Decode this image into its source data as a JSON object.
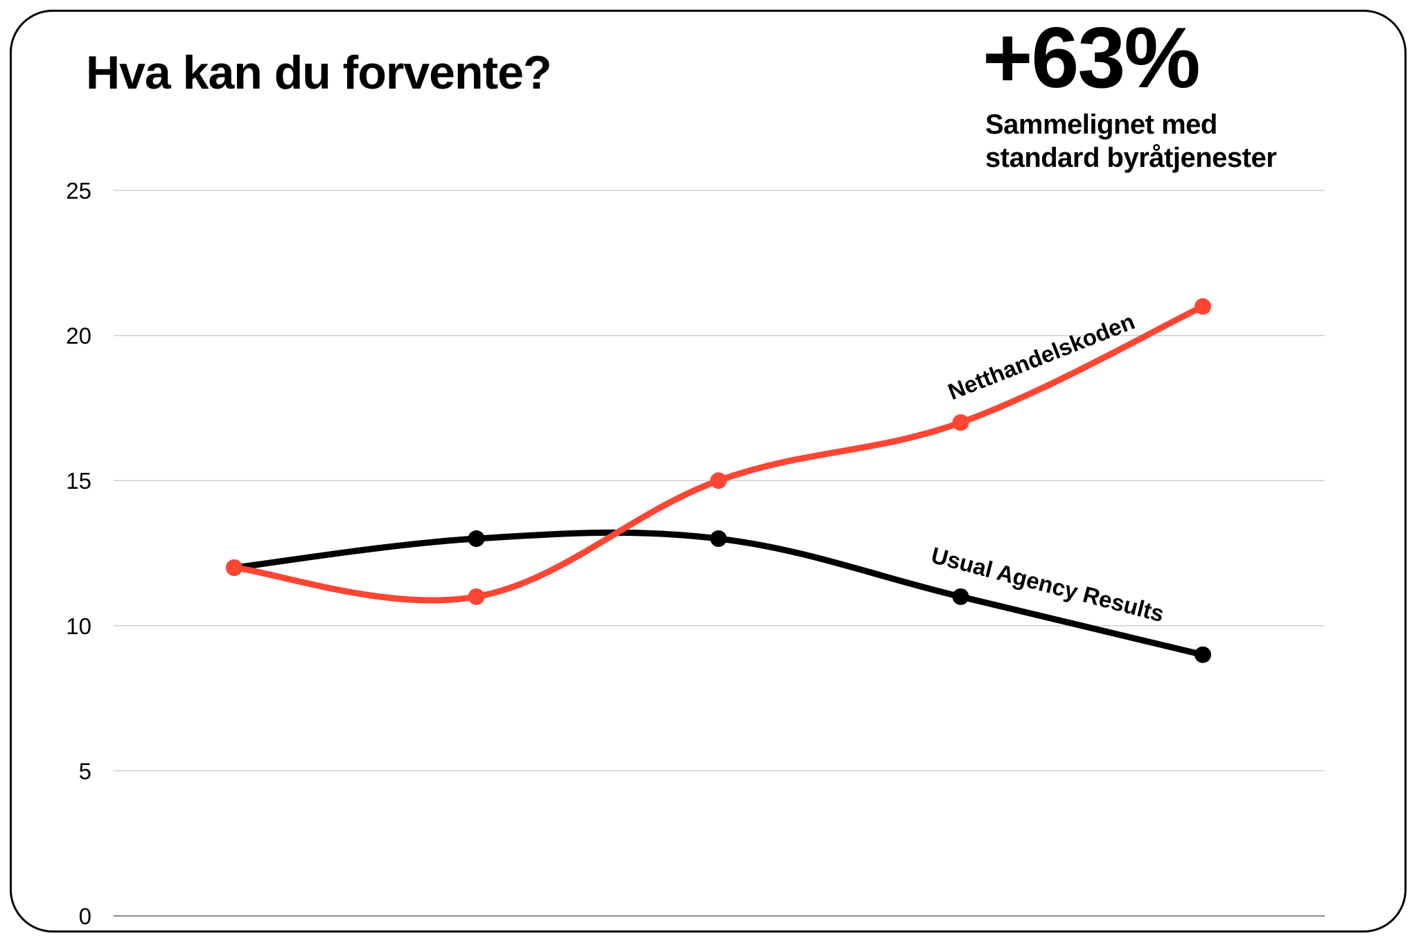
{
  "header": {
    "title": "Hva kan du forvente?",
    "kpi_value": "+63%",
    "kpi_caption_line1": "Sammelignet med",
    "kpi_caption_line2": "standard byråtjenester"
  },
  "colors": {
    "accent": "#FF4533",
    "baseline": "#000000",
    "grid": "#CFCFCF",
    "border": "#000000"
  },
  "chart_data": {
    "type": "line",
    "title": "Hva kan du forvente?",
    "xlabel": "",
    "ylabel": "",
    "x": [
      1,
      2,
      3,
      4,
      5
    ],
    "ylim": [
      0,
      25
    ],
    "yticks": [
      0,
      5,
      10,
      15,
      20,
      25
    ],
    "grid": true,
    "curve": "smooth",
    "markers": true,
    "series": [
      {
        "name": "Netthandelskoden",
        "color": "#FF4533",
        "values": [
          12,
          11,
          15,
          17,
          21
        ]
      },
      {
        "name": "Usual Agency Results",
        "color": "#000000",
        "values": [
          12,
          13,
          13,
          11,
          9
        ]
      }
    ]
  }
}
